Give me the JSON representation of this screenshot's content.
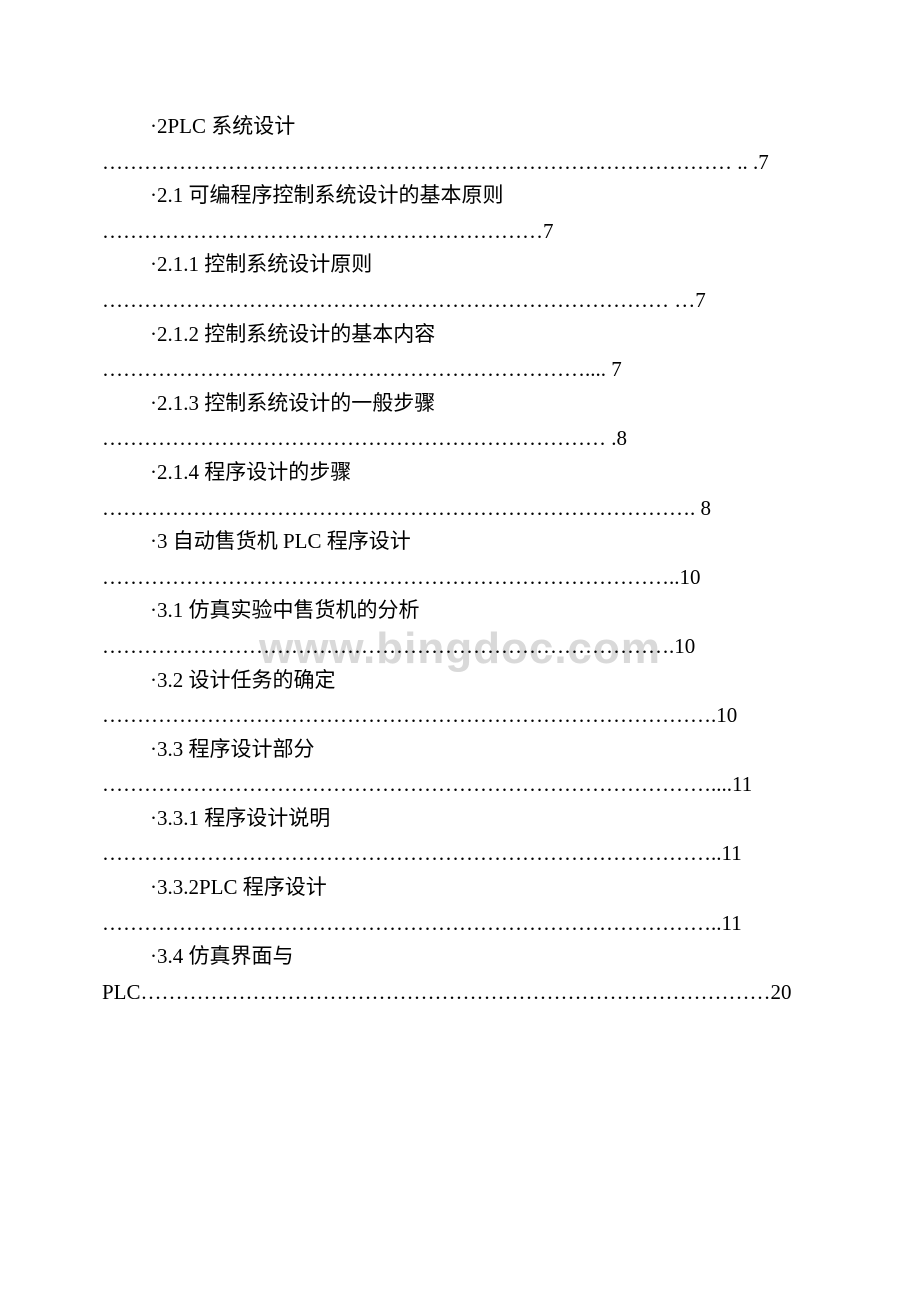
{
  "watermark": "www.bingdoc.com",
  "entries": [
    {
      "title": "·2PLC 系统设计",
      "dots": "……………………………………………………………………………… .. .7"
    },
    {
      "title": "·2.1 可编程序控制系统设计的基本原则",
      "dots": "………………………………………………………7"
    },
    {
      "title": "·2.1.1 控制系统设计原则",
      "dots": "……………………………………………………………………… …7"
    },
    {
      "title": "·2.1.2 控制系统设计的基本内容",
      "dots": "…………………………………………………………….... 7"
    },
    {
      "title": "·2.1.3 控制系统设计的一般步骤",
      "dots": "……………………………………………………………… .8"
    },
    {
      "title": "·2.1.4 程序设计的步骤",
      "dots": "…………………………………………………………………………. 8"
    },
    {
      "title": "·3 自动售货机 PLC 程序设计",
      "dots": "………………………………………………………………………..10"
    },
    {
      "title": "·3.1 仿真实验中售货机的分析",
      "dots": "……………………………………………………………………….10"
    },
    {
      "title": "·3.2 设计任务的确定",
      "dots": "…………………………………………………………………………….10"
    },
    {
      "title": "·3.3 程序设计部分",
      "dots": "……………………………………………………………………………....11"
    },
    {
      "title": "·3.3.1 程序设计说明",
      "dots": "……………………………………………………………………………..11"
    },
    {
      "title": "·3.3.2PLC 程序设计",
      "dots": "……………………………………………………………………………..11"
    },
    {
      "title": "·3.4 仿真界面与PLC",
      "dots": "………………………………………………………………………………20",
      "special": true
    }
  ]
}
